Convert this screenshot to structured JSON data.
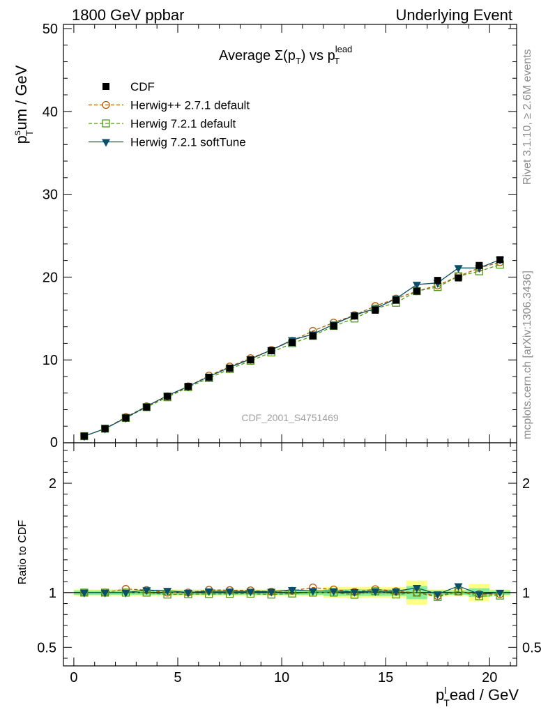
{
  "header": {
    "left": "1800 GeV ppbar",
    "right": "Underlying Event"
  },
  "side_text": {
    "top": "Rivet 3.1.10, ≥ 2.6M events",
    "bottom": "mcplots.cern.ch [arXiv:1306.3436]"
  },
  "watermark": "CDF_2001_S4751469",
  "title": {
    "main": "Average Σ(p",
    "sub_t": "T",
    "mid": ") vs p",
    "sup": "lead",
    "sub_t2": "T"
  },
  "ylabel": {
    "main": "p",
    "sup": "s",
    "sub": "T",
    "rest": "um / GeV"
  },
  "ratio_ylabel": "Ratio to CDF",
  "xlabel": {
    "main": "p",
    "sup": "l",
    "sub": "T",
    "rest": "ead / GeV"
  },
  "legend": [
    {
      "label": "CDF"
    },
    {
      "label": "Herwig++ 2.7.1 default"
    },
    {
      "label": "Herwig 7.2.1 default"
    },
    {
      "label": "Herwig 7.2.1 softTune"
    }
  ],
  "chart_data": {
    "type": "line",
    "x": [
      0.5,
      1.5,
      2.5,
      3.5,
      4.5,
      5.5,
      6.5,
      7.5,
      8.5,
      9.5,
      10.5,
      11.5,
      12.5,
      13.5,
      14.5,
      15.5,
      16.5,
      17.5,
      18.5,
      19.5,
      20.5
    ],
    "xlim": [
      -0.5,
      21.3
    ],
    "ylim": [
      0,
      50.5
    ],
    "ratio_ylim": [
      0.33,
      2.37
    ],
    "x_ticks": [
      0,
      5,
      10,
      15,
      20
    ],
    "y_ticks": [
      10,
      20,
      30,
      40,
      50
    ],
    "ratio_ticks": [
      0.5,
      1,
      2
    ],
    "data_series": {
      "name": "CDF",
      "values": [
        0.8,
        1.7,
        3.0,
        4.3,
        5.6,
        6.8,
        7.9,
        9.0,
        10.0,
        11.1,
        12.1,
        12.9,
        14.1,
        15.3,
        16.0,
        17.2,
        18.3,
        19.6,
        19.9,
        21.4,
        22.1
      ],
      "ratio_band_inner": [
        0.02,
        0.02,
        0.02,
        0.02,
        0.02,
        0.02,
        0.02,
        0.02,
        0.02,
        0.02,
        0.02,
        0.02,
        0.03,
        0.03,
        0.03,
        0.03,
        0.06,
        0.02,
        0.02,
        0.04,
        0.02
      ],
      "ratio_band_outer": [
        0.03,
        0.03,
        0.03,
        0.03,
        0.03,
        0.03,
        0.03,
        0.03,
        0.03,
        0.03,
        0.03,
        0.03,
        0.05,
        0.05,
        0.05,
        0.05,
        0.11,
        0.03,
        0.03,
        0.08,
        0.03
      ]
    },
    "series": [
      {
        "name": "Herwig++ 2.7.1 default",
        "color": "#b35a00",
        "marker": "circle",
        "dash": "dashed",
        "values": [
          0.8,
          1.7,
          3.1,
          4.4,
          5.6,
          6.8,
          8.1,
          9.2,
          10.2,
          11.2,
          12.3,
          13.5,
          14.5,
          15.4,
          16.5,
          17.4,
          18.3,
          19.0,
          20.1,
          21.1,
          21.8
        ]
      },
      {
        "name": "Herwig 7.2.1 default",
        "color": "#4f9a16",
        "marker": "square",
        "dash": "dashed",
        "values": [
          0.8,
          1.7,
          3.0,
          4.3,
          5.5,
          6.7,
          7.8,
          8.9,
          9.9,
          10.9,
          12.0,
          12.9,
          14.1,
          15.0,
          16.2,
          16.9,
          18.3,
          18.8,
          20.1,
          20.7,
          21.5
        ]
      },
      {
        "name": "Herwig 7.2.1 softTune",
        "color": "#0b4f66",
        "marker": "triangle-down",
        "dash": "solid",
        "values": [
          0.8,
          1.7,
          3.0,
          4.4,
          5.7,
          6.8,
          8.0,
          9.1,
          10.1,
          11.2,
          12.4,
          13.1,
          14.3,
          15.4,
          16.2,
          17.4,
          19.1,
          19.3,
          21.1,
          21.1,
          22.1
        ]
      }
    ]
  }
}
